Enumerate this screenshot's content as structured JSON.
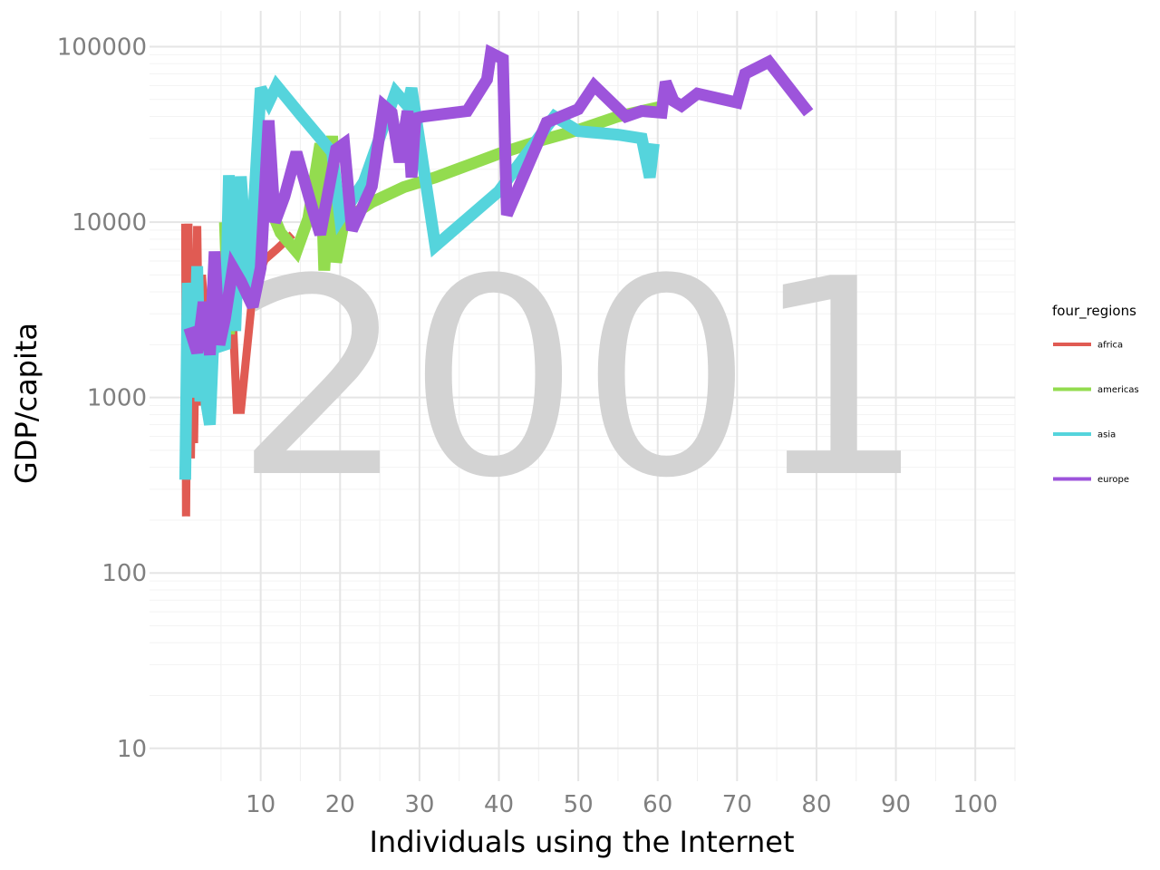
{
  "chart_data": {
    "type": "line",
    "title": "",
    "xlabel": "Individuals using the Internet",
    "ylabel": "GDP/capita",
    "annotation": "2001",
    "x_ticks": [
      10,
      20,
      30,
      40,
      50,
      60,
      70,
      80,
      90,
      100
    ],
    "y_ticks": [
      10,
      100,
      1000,
      10000,
      100000
    ],
    "y_tick_labels": [
      "10",
      "100",
      "1000",
      "10000",
      "100000"
    ],
    "x_range": [
      -4,
      105
    ],
    "y_range": [
      6.5,
      160000
    ],
    "y_scale": "log",
    "grid": true,
    "legend": {
      "title": "four_regions",
      "placement": "right"
    },
    "series": [
      {
        "name": "africa",
        "color": "#e05b53",
        "points": [
          [
            0.5,
            9800
          ],
          [
            0.6,
            210
          ],
          [
            0.9,
            9800
          ],
          [
            1.2,
            450
          ],
          [
            1.4,
            2200
          ],
          [
            1.6,
            550
          ],
          [
            2.0,
            9500
          ],
          [
            2.3,
            900
          ],
          [
            2.6,
            5000
          ],
          [
            3.0,
            2800
          ],
          [
            3.4,
            1800
          ],
          [
            5.0,
            3900
          ],
          [
            6.5,
            2700
          ],
          [
            7.0,
            850
          ],
          [
            7.5,
            850
          ],
          [
            9.0,
            4000
          ],
          [
            10.5,
            6100
          ],
          [
            12.0,
            7000
          ],
          [
            14.0,
            8500
          ]
        ]
      },
      {
        "name": "americas",
        "color": "#93dc4f",
        "points": [
          [
            5.5,
            10000
          ],
          [
            6.0,
            2300
          ],
          [
            7.0,
            8800
          ],
          [
            8.5,
            4400
          ],
          [
            10.0,
            11500
          ],
          [
            11.5,
            11200
          ],
          [
            12.5,
            8700
          ],
          [
            14.5,
            6800
          ],
          [
            16.0,
            10500
          ],
          [
            17.5,
            28000
          ],
          [
            18.0,
            5300
          ],
          [
            19.0,
            31000
          ],
          [
            19.5,
            5900
          ],
          [
            20.5,
            10200
          ],
          [
            24.0,
            13000
          ],
          [
            28.0,
            15800
          ],
          [
            32.0,
            18000
          ],
          [
            36.0,
            21000
          ],
          [
            40.0,
            24500
          ],
          [
            45.0,
            29000
          ],
          [
            50.0,
            33500
          ],
          [
            55.0,
            40000
          ],
          [
            60.0,
            45000
          ],
          [
            61.0,
            43000
          ]
        ]
      },
      {
        "name": "asia",
        "color": "#55d4dc",
        "points": [
          [
            0.5,
            340
          ],
          [
            0.8,
            4500
          ],
          [
            1.2,
            2300
          ],
          [
            1.6,
            1000
          ],
          [
            2.0,
            5600
          ],
          [
            2.4,
            950
          ],
          [
            2.8,
            3500
          ],
          [
            3.2,
            900
          ],
          [
            3.6,
            700
          ],
          [
            4.0,
            1900
          ],
          [
            5.5,
            2000
          ],
          [
            6.0,
            18500
          ],
          [
            6.8,
            2400
          ],
          [
            7.5,
            18200
          ],
          [
            8.5,
            3800
          ],
          [
            10.0,
            58000
          ],
          [
            11.0,
            48000
          ],
          [
            12.0,
            60000
          ],
          [
            15.0,
            41000
          ],
          [
            19.0,
            25000
          ],
          [
            20.0,
            10500
          ],
          [
            23.0,
            17000
          ],
          [
            27.0,
            55000
          ],
          [
            28.5,
            46000
          ],
          [
            29.0,
            58000
          ],
          [
            32.0,
            7300
          ],
          [
            40.0,
            15000
          ],
          [
            47.0,
            40000
          ],
          [
            50.0,
            33000
          ],
          [
            55.0,
            31500
          ],
          [
            58.0,
            30000
          ],
          [
            59.0,
            18000
          ],
          [
            59.5,
            28000
          ]
        ]
      },
      {
        "name": "europe",
        "color": "#9d54db",
        "points": [
          [
            1.0,
            2500
          ],
          [
            2.0,
            1800
          ],
          [
            2.8,
            3500
          ],
          [
            3.6,
            1750
          ],
          [
            4.2,
            6800
          ],
          [
            4.8,
            2000
          ],
          [
            5.5,
            2800
          ],
          [
            6.5,
            5500
          ],
          [
            7.5,
            4600
          ],
          [
            9.0,
            3300
          ],
          [
            10.0,
            5500
          ],
          [
            11.0,
            38000
          ],
          [
            11.8,
            10000
          ],
          [
            13.0,
            14000
          ],
          [
            14.5,
            25000
          ],
          [
            16.5,
            12000
          ],
          [
            17.5,
            8500
          ],
          [
            19.5,
            26000
          ],
          [
            20.5,
            28000
          ],
          [
            21.5,
            9000
          ],
          [
            24.0,
            16000
          ],
          [
            25.5,
            46000
          ],
          [
            26.5,
            42000
          ],
          [
            27.5,
            22000
          ],
          [
            28.5,
            43000
          ],
          [
            29.0,
            18000
          ],
          [
            29.5,
            39000
          ],
          [
            30.5,
            40000
          ],
          [
            36.0,
            43000
          ],
          [
            38.5,
            65000
          ],
          [
            39.0,
            92000
          ],
          [
            40.5,
            85000
          ],
          [
            41.0,
            11000
          ],
          [
            46.0,
            37000
          ],
          [
            50.0,
            44000
          ],
          [
            52.0,
            60000
          ],
          [
            56.0,
            40000
          ],
          [
            58.0,
            43000
          ],
          [
            60.5,
            42000
          ],
          [
            61.0,
            63000
          ],
          [
            62.0,
            49000
          ],
          [
            63.0,
            46000
          ],
          [
            65.0,
            54000
          ],
          [
            70.0,
            48000
          ],
          [
            71.0,
            70000
          ],
          [
            74.0,
            82000
          ],
          [
            79.0,
            42000
          ]
        ]
      }
    ]
  }
}
